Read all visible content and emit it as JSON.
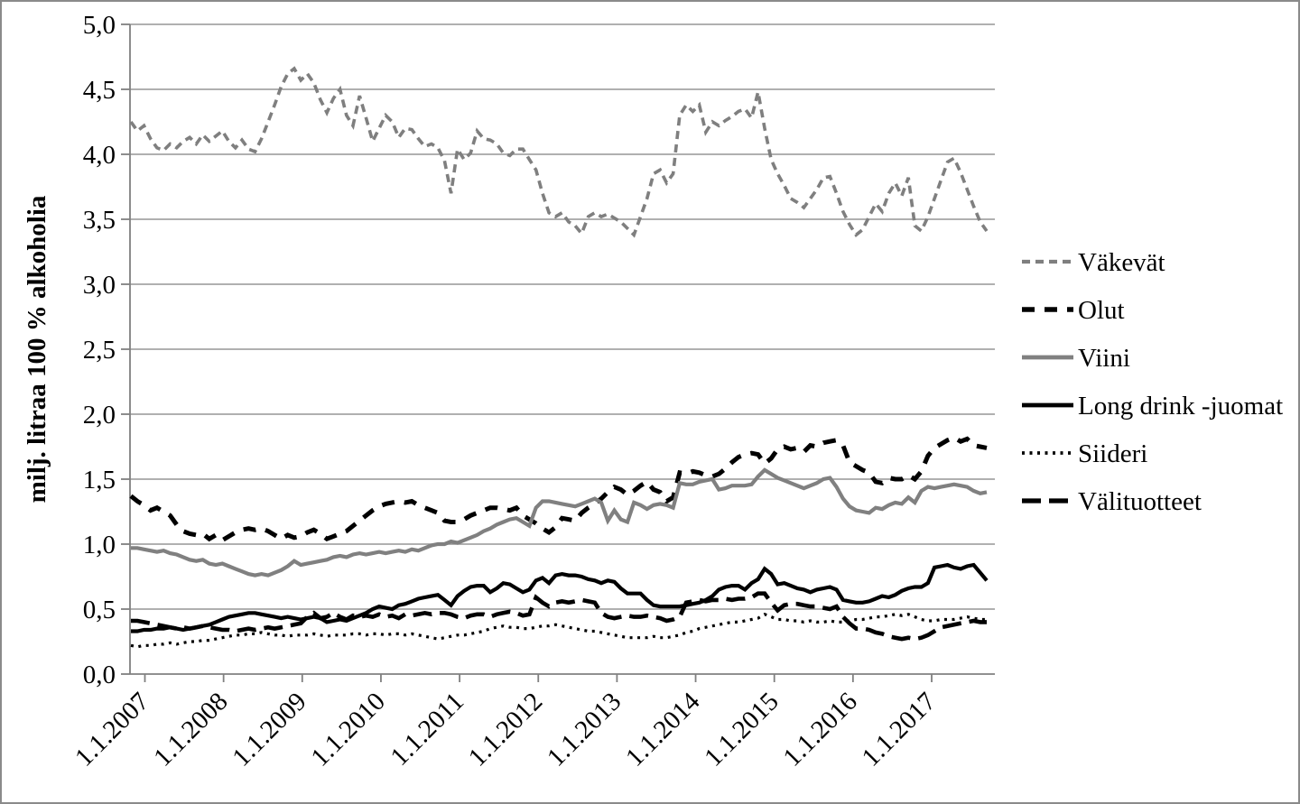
{
  "page": {
    "background_color": "#ffffff",
    "frame_border_color": "#8a8a8a",
    "axis_color": "#808080",
    "gridline_color": "#969696"
  },
  "chart_data": {
    "type": "line",
    "title": "",
    "ylabel": "milj. litraa 100 % alkoholia",
    "ylim": [
      0.0,
      5.0
    ],
    "ytick_step": 0.5,
    "decimal_separator": ",",
    "ytick_labels": [
      "0,0",
      "0,5",
      "1,0",
      "1,5",
      "2,0",
      "2,5",
      "3,0",
      "3,5",
      "4,0",
      "4,5",
      "5,0"
    ],
    "xtick_labels": [
      "1.1.2007",
      "1.1.2008",
      "1.1.2009",
      "1.1.2010",
      "1.1.2011",
      "1.1.2012",
      "1.1.2013",
      "1.1.2014",
      "1.1.2015",
      "1.1.2016",
      "1.1.2017"
    ],
    "x": {
      "start": "2007-01",
      "end": "2017-12",
      "step": "monthly",
      "points": 132
    },
    "grid": "horizontal",
    "legend_position": "right",
    "series": [
      {
        "name": "Väkevät",
        "color": "#7f7f7f",
        "style": "short-dash",
        "values": [
          4.25,
          4.18,
          4.22,
          4.12,
          4.05,
          4.03,
          4.08,
          4.05,
          4.1,
          4.13,
          4.08,
          4.15,
          4.1,
          4.14,
          4.18,
          4.1,
          4.05,
          4.11,
          4.04,
          4.02,
          4.12,
          4.25,
          4.38,
          4.52,
          4.62,
          4.66,
          4.57,
          4.62,
          4.55,
          4.42,
          4.32,
          4.43,
          4.5,
          4.3,
          4.22,
          4.45,
          4.28,
          4.1,
          4.2,
          4.3,
          4.25,
          4.13,
          4.2,
          4.19,
          4.12,
          4.06,
          4.08,
          4.05,
          3.95,
          3.7,
          4.04,
          3.96,
          4.01,
          4.18,
          4.12,
          4.11,
          4.08,
          4.01,
          3.99,
          4.04,
          4.04,
          3.96,
          3.88,
          3.7,
          3.55,
          3.52,
          3.55,
          3.48,
          3.45,
          3.39,
          3.52,
          3.55,
          3.52,
          3.54,
          3.51,
          3.48,
          3.43,
          3.38,
          3.52,
          3.66,
          3.85,
          3.88,
          3.78,
          3.85,
          4.3,
          4.38,
          4.33,
          4.38,
          4.17,
          4.25,
          4.22,
          4.26,
          4.29,
          4.33,
          4.35,
          4.28,
          4.48,
          4.2,
          3.96,
          3.85,
          3.76,
          3.66,
          3.63,
          3.59,
          3.66,
          3.73,
          3.82,
          3.83,
          3.7,
          3.56,
          3.46,
          3.38,
          3.42,
          3.52,
          3.62,
          3.56,
          3.7,
          3.78,
          3.68,
          3.82,
          3.45,
          3.41,
          3.52,
          3.66,
          3.8,
          3.94,
          3.97,
          3.86,
          3.73,
          3.6,
          3.48,
          3.41
        ]
      },
      {
        "name": "Olut",
        "color": "#000000",
        "style": "dash",
        "values": [
          1.37,
          1.33,
          1.3,
          1.26,
          1.28,
          1.25,
          1.22,
          1.15,
          1.1,
          1.08,
          1.07,
          1.08,
          1.04,
          1.07,
          1.03,
          1.06,
          1.09,
          1.11,
          1.12,
          1.11,
          1.12,
          1.1,
          1.07,
          1.04,
          1.07,
          1.05,
          1.06,
          1.09,
          1.11,
          1.08,
          1.04,
          1.06,
          1.08,
          1.1,
          1.14,
          1.18,
          1.22,
          1.26,
          1.29,
          1.31,
          1.32,
          1.33,
          1.32,
          1.33,
          1.3,
          1.28,
          1.26,
          1.24,
          1.18,
          1.17,
          1.17,
          1.19,
          1.22,
          1.24,
          1.26,
          1.28,
          1.28,
          1.27,
          1.26,
          1.28,
          1.22,
          1.19,
          1.16,
          1.12,
          1.09,
          1.13,
          1.2,
          1.19,
          1.18,
          1.24,
          1.28,
          1.31,
          1.35,
          1.4,
          1.44,
          1.42,
          1.38,
          1.41,
          1.45,
          1.48,
          1.42,
          1.4,
          1.33,
          1.36,
          1.55,
          1.54,
          1.56,
          1.55,
          1.53,
          1.52,
          1.54,
          1.58,
          1.63,
          1.67,
          1.69,
          1.7,
          1.69,
          1.62,
          1.66,
          1.73,
          1.75,
          1.73,
          1.74,
          1.71,
          1.76,
          1.75,
          1.78,
          1.79,
          1.8,
          1.76,
          1.63,
          1.6,
          1.57,
          1.55,
          1.48,
          1.47,
          1.51,
          1.5,
          1.5,
          1.53,
          1.5,
          1.56,
          1.68,
          1.74,
          1.77,
          1.8,
          1.82,
          1.79,
          1.81,
          1.76,
          1.75,
          1.74
        ]
      },
      {
        "name": "Viini",
        "color": "#808080",
        "style": "solid",
        "values": [
          0.97,
          0.97,
          0.96,
          0.95,
          0.94,
          0.95,
          0.93,
          0.92,
          0.9,
          0.88,
          0.87,
          0.88,
          0.85,
          0.84,
          0.85,
          0.83,
          0.81,
          0.79,
          0.77,
          0.76,
          0.77,
          0.76,
          0.78,
          0.8,
          0.83,
          0.87,
          0.84,
          0.85,
          0.86,
          0.87,
          0.88,
          0.9,
          0.91,
          0.9,
          0.92,
          0.93,
          0.92,
          0.93,
          0.94,
          0.93,
          0.94,
          0.95,
          0.94,
          0.96,
          0.95,
          0.97,
          0.99,
          1.0,
          1.0,
          1.02,
          1.01,
          1.03,
          1.05,
          1.07,
          1.1,
          1.12,
          1.15,
          1.17,
          1.19,
          1.2,
          1.17,
          1.14,
          1.28,
          1.33,
          1.33,
          1.32,
          1.31,
          1.3,
          1.29,
          1.31,
          1.33,
          1.35,
          1.32,
          1.18,
          1.26,
          1.19,
          1.17,
          1.32,
          1.3,
          1.27,
          1.3,
          1.31,
          1.3,
          1.28,
          1.47,
          1.46,
          1.46,
          1.48,
          1.49,
          1.5,
          1.42,
          1.43,
          1.45,
          1.45,
          1.45,
          1.46,
          1.52,
          1.57,
          1.54,
          1.51,
          1.49,
          1.47,
          1.45,
          1.43,
          1.45,
          1.47,
          1.5,
          1.51,
          1.44,
          1.35,
          1.29,
          1.26,
          1.25,
          1.24,
          1.28,
          1.27,
          1.3,
          1.32,
          1.31,
          1.36,
          1.32,
          1.41,
          1.44,
          1.43,
          1.44,
          1.45,
          1.46,
          1.45,
          1.44,
          1.41,
          1.39,
          1.4
        ]
      },
      {
        "name": "Long drink -juomat",
        "color": "#000000",
        "style": "solid",
        "values": [
          0.33,
          0.33,
          0.34,
          0.34,
          0.35,
          0.35,
          0.36,
          0.35,
          0.34,
          0.35,
          0.36,
          0.37,
          0.38,
          0.4,
          0.42,
          0.44,
          0.45,
          0.46,
          0.47,
          0.47,
          0.46,
          0.45,
          0.44,
          0.43,
          0.44,
          0.43,
          0.42,
          0.43,
          0.44,
          0.43,
          0.4,
          0.41,
          0.42,
          0.41,
          0.43,
          0.45,
          0.47,
          0.5,
          0.52,
          0.51,
          0.5,
          0.53,
          0.54,
          0.56,
          0.58,
          0.59,
          0.6,
          0.61,
          0.57,
          0.53,
          0.6,
          0.64,
          0.67,
          0.68,
          0.68,
          0.63,
          0.66,
          0.7,
          0.69,
          0.66,
          0.63,
          0.65,
          0.72,
          0.74,
          0.7,
          0.76,
          0.77,
          0.76,
          0.76,
          0.75,
          0.73,
          0.72,
          0.7,
          0.72,
          0.71,
          0.66,
          0.62,
          0.62,
          0.62,
          0.57,
          0.53,
          0.52,
          0.52,
          0.52,
          0.52,
          0.53,
          0.54,
          0.55,
          0.57,
          0.6,
          0.65,
          0.67,
          0.68,
          0.68,
          0.65,
          0.7,
          0.73,
          0.81,
          0.77,
          0.69,
          0.7,
          0.68,
          0.66,
          0.65,
          0.63,
          0.65,
          0.66,
          0.67,
          0.65,
          0.57,
          0.56,
          0.55,
          0.55,
          0.56,
          0.58,
          0.6,
          0.59,
          0.61,
          0.64,
          0.66,
          0.67,
          0.67,
          0.7,
          0.82,
          0.83,
          0.84,
          0.82,
          0.81,
          0.83,
          0.84,
          0.78,
          0.72
        ]
      },
      {
        "name": "Siideri",
        "color": "#000000",
        "style": "dot",
        "values": [
          0.22,
          0.21,
          0.22,
          0.22,
          0.23,
          0.23,
          0.24,
          0.23,
          0.24,
          0.25,
          0.25,
          0.26,
          0.26,
          0.27,
          0.28,
          0.29,
          0.3,
          0.3,
          0.31,
          0.31,
          0.32,
          0.31,
          0.3,
          0.3,
          0.29,
          0.3,
          0.3,
          0.3,
          0.31,
          0.3,
          0.29,
          0.3,
          0.3,
          0.3,
          0.31,
          0.31,
          0.3,
          0.31,
          0.31,
          0.3,
          0.31,
          0.31,
          0.3,
          0.31,
          0.3,
          0.29,
          0.28,
          0.27,
          0.28,
          0.29,
          0.3,
          0.3,
          0.31,
          0.32,
          0.33,
          0.35,
          0.36,
          0.37,
          0.36,
          0.36,
          0.35,
          0.35,
          0.36,
          0.37,
          0.37,
          0.38,
          0.37,
          0.36,
          0.35,
          0.34,
          0.33,
          0.33,
          0.32,
          0.31,
          0.3,
          0.29,
          0.28,
          0.28,
          0.28,
          0.28,
          0.29,
          0.28,
          0.28,
          0.29,
          0.3,
          0.32,
          0.33,
          0.35,
          0.36,
          0.37,
          0.38,
          0.39,
          0.4,
          0.4,
          0.41,
          0.42,
          0.43,
          0.46,
          0.44,
          0.42,
          0.42,
          0.41,
          0.41,
          0.4,
          0.41,
          0.4,
          0.4,
          0.41,
          0.4,
          0.4,
          0.41,
          0.42,
          0.42,
          0.43,
          0.44,
          0.44,
          0.45,
          0.46,
          0.45,
          0.46,
          0.44,
          0.42,
          0.41,
          0.41,
          0.42,
          0.42,
          0.42,
          0.43,
          0.44,
          0.43,
          0.42,
          0.42
        ]
      },
      {
        "name": "Välituotteet",
        "color": "#000000",
        "style": "long-dash",
        "values": [
          0.41,
          0.41,
          0.4,
          0.39,
          0.38,
          0.37,
          0.36,
          0.35,
          0.36,
          0.35,
          0.36,
          0.37,
          0.36,
          0.35,
          0.34,
          0.34,
          0.33,
          0.34,
          0.35,
          0.34,
          0.35,
          0.36,
          0.35,
          0.36,
          0.37,
          0.38,
          0.39,
          0.44,
          0.47,
          0.43,
          0.44,
          0.47,
          0.44,
          0.42,
          0.45,
          0.44,
          0.45,
          0.44,
          0.46,
          0.44,
          0.45,
          0.43,
          0.46,
          0.45,
          0.46,
          0.47,
          0.46,
          0.47,
          0.47,
          0.46,
          0.44,
          0.43,
          0.45,
          0.46,
          0.46,
          0.44,
          0.46,
          0.47,
          0.48,
          0.47,
          0.45,
          0.46,
          0.59,
          0.55,
          0.52,
          0.55,
          0.56,
          0.55,
          0.56,
          0.57,
          0.56,
          0.55,
          0.47,
          0.44,
          0.43,
          0.44,
          0.45,
          0.44,
          0.44,
          0.45,
          0.44,
          0.43,
          0.41,
          0.42,
          0.44,
          0.55,
          0.56,
          0.57,
          0.56,
          0.57,
          0.57,
          0.58,
          0.57,
          0.58,
          0.58,
          0.59,
          0.62,
          0.62,
          0.55,
          0.49,
          0.53,
          0.54,
          0.54,
          0.53,
          0.52,
          0.52,
          0.51,
          0.5,
          0.52,
          0.44,
          0.39,
          0.35,
          0.35,
          0.34,
          0.32,
          0.31,
          0.29,
          0.28,
          0.27,
          0.28,
          0.27,
          0.28,
          0.3,
          0.33,
          0.36,
          0.37,
          0.38,
          0.39,
          0.4,
          0.41,
          0.4,
          0.4
        ]
      }
    ]
  }
}
